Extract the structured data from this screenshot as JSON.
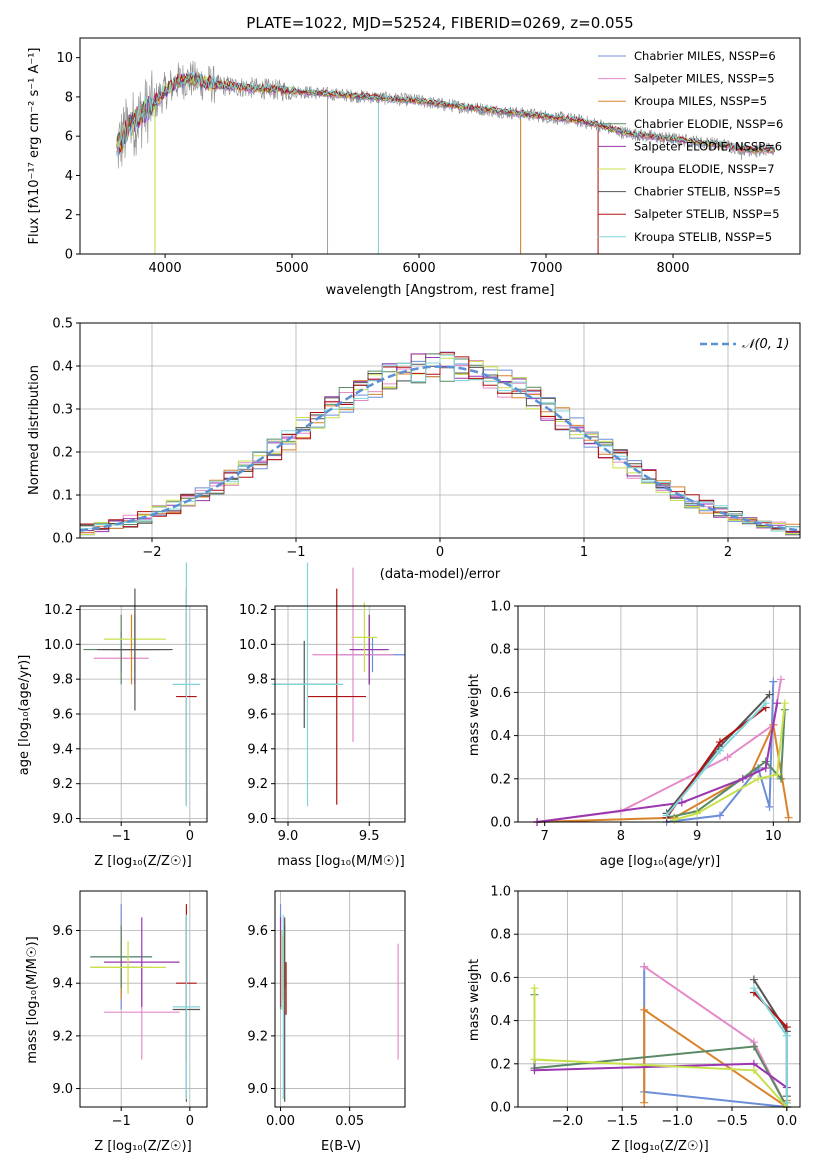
{
  "colors": {
    "chabrier_miles": "#6c8ed8",
    "salpeter_miles": "#e58ac8",
    "kroupa_miles": "#d9822b",
    "chabrier_elodie": "#5a8a64",
    "salpeter_elodie": "#9a36b0",
    "kroupa_elodie": "#c8e04a",
    "chabrier_stelib": "#555555",
    "salpeter_stelib": "#b01010",
    "kroupa_stelib": "#7fd6dc",
    "observed": "#888888",
    "normal": "#5b8fd6"
  },
  "spectrum_panel": {
    "title": "PLATE=1022, MJD=52524, FIBERID=0269, z=0.055",
    "xlabel": "wavelength [Angstrom, rest frame]",
    "ylabel": "Flux [fλ10⁻¹⁷ erg cm⁻² s⁻¹ A⁻¹]",
    "legend": [
      "Chabrier MILES, NSSP=6",
      "Salpeter MILES, NSSP=5",
      "Kroupa MILES, NSSP=5",
      "Chabrier ELODIE, NSSP=6",
      "Salpeter ELODIE, NSSP=6",
      "Kroupa ELODIE, NSSP=7",
      "Chabrier STELIB, NSSP=5",
      "Salpeter STELIB, NSSP=5",
      "Kroupa STELIB, NSSP=5"
    ]
  },
  "residual_panel": {
    "xlabel": "(data-model)/error",
    "ylabel": "Normed distribution",
    "legend": "𝒩(0, 1)"
  },
  "age_z_panel": {
    "xlabel": "Z [log₁₀(Z/Z☉)]",
    "ylabel": "age  [log₁₀(age/yr)]"
  },
  "age_mass_panel": {
    "xlabel": "mass [log₁₀(M/M☉)]"
  },
  "weight_age_panel": {
    "xlabel": "age  [log₁₀(age/yr)]",
    "ylabel": "mass weight"
  },
  "mass_z_panel": {
    "xlabel": "Z [log₁₀(Z/Z☉)]",
    "ylabel": "mass [log₁₀(M/M☉)]"
  },
  "mass_ebv_panel": {
    "xlabel": "E(B-V)"
  },
  "weight_z_panel": {
    "xlabel": "Z [log₁₀(Z/Z☉)]",
    "ylabel": "mass weight"
  },
  "chart_data": [
    {
      "type": "line",
      "title": "PLATE=1022, MJD=52524, FIBERID=0269, z=0.055",
      "xlabel": "wavelength [Angstrom, rest frame]",
      "ylabel": "Flux [fλ10⁻¹⁷ erg cm⁻² s⁻¹ A⁻¹]",
      "xlim": [
        3330,
        9000
      ],
      "ylim": [
        0,
        11
      ],
      "xticks": [
        4000,
        5000,
        6000,
        7000,
        8000
      ],
      "yticks": [
        0,
        2,
        4,
        6,
        8,
        10
      ],
      "legend_position": "upper right",
      "grid": false,
      "continuum": {
        "x": [
          3620,
          3700,
          3800,
          3900,
          4000,
          4100,
          4200,
          4400,
          4600,
          4800,
          5000,
          5200,
          5400,
          5600,
          5800,
          6000,
          6200,
          6400,
          6600,
          6800,
          7000,
          7200,
          7400,
          7600,
          7800,
          8000,
          8200,
          8400,
          8600,
          8800
        ],
        "y": [
          5.4,
          6.3,
          7.0,
          7.6,
          8.3,
          8.8,
          8.9,
          8.6,
          8.5,
          8.4,
          8.3,
          8.2,
          8.1,
          8.0,
          7.9,
          7.8,
          7.6,
          7.45,
          7.3,
          7.15,
          7.0,
          6.85,
          6.6,
          6.2,
          6.0,
          5.85,
          5.7,
          5.55,
          5.3,
          5.3
        ]
      },
      "series": [
        {
          "name": "Chabrier MILES, NSSP=6",
          "color_key": "chabrier_miles"
        },
        {
          "name": "Salpeter MILES, NSSP=5",
          "color_key": "salpeter_miles"
        },
        {
          "name": "Kroupa MILES, NSSP=5",
          "color_key": "kroupa_miles"
        },
        {
          "name": "Chabrier ELODIE, NSSP=6",
          "color_key": "chabrier_elodie"
        },
        {
          "name": "Salpeter ELODIE, NSSP=6",
          "color_key": "salpeter_elodie"
        },
        {
          "name": "Kroupa ELODIE, NSSP=7",
          "color_key": "kroupa_elodie"
        },
        {
          "name": "Chabrier STELIB, NSSP=5",
          "color_key": "chabrier_stelib"
        },
        {
          "name": "Salpeter STELIB, NSSP=5",
          "color_key": "salpeter_stelib"
        },
        {
          "name": "Kroupa STELIB, NSSP=5",
          "color_key": "kroupa_stelib"
        }
      ]
    },
    {
      "type": "bar",
      "xlabel": "(data-model)/error",
      "ylabel": "Normed distribution",
      "xlim": [
        -2.5,
        2.5
      ],
      "ylim": [
        0,
        0.5
      ],
      "xticks": [
        -2,
        -1,
        0,
        1,
        2
      ],
      "yticks": [
        0.0,
        0.1,
        0.2,
        0.3,
        0.4,
        0.5
      ],
      "grid": true,
      "bin_width": 0.1,
      "bin_start": -2.5,
      "reference_curve": {
        "name": "𝒩(0, 1)",
        "mean": 0,
        "sigma": 1,
        "style": "dashed"
      },
      "histograms": 9
    },
    {
      "type": "scatter",
      "xlabel": "Z [log₁₀(Z/Z☉)]",
      "ylabel": "age  [log₁₀(age/yr)]",
      "xlim": [
        -1.6,
        0.25
      ],
      "ylim": [
        8.98,
        10.22
      ],
      "xticks": [
        -1,
        0
      ],
      "yticks": [
        9.0,
        9.2,
        9.4,
        9.6,
        9.8,
        10.0,
        10.2
      ],
      "grid": true,
      "points": [
        {
          "key": "chabrier_miles",
          "x": -1.0,
          "y": 9.97,
          "xerr": 0.15,
          "yerr": 0.1
        },
        {
          "key": "salpeter_miles",
          "x": -1.0,
          "y": 9.92,
          "xerr": 0.4,
          "yerr": 0.08
        },
        {
          "key": "kroupa_miles",
          "x": -0.85,
          "y": 9.97,
          "xerr": 0.3,
          "yerr": 0.2
        },
        {
          "key": "chabrier_elodie",
          "x": -1.0,
          "y": 9.97,
          "xerr": 0.55,
          "yerr": 0.2
        },
        {
          "key": "salpeter_elodie",
          "x": -0.8,
          "y": 9.97,
          "xerr": 0.5,
          "yerr": 0.2
        },
        {
          "key": "kroupa_elodie",
          "x": -0.8,
          "y": 10.03,
          "xerr": 0.45,
          "yerr": 0.2
        },
        {
          "key": "chabrier_stelib",
          "x": -0.8,
          "y": 9.97,
          "xerr": 0.55,
          "yerr": 0.35
        },
        {
          "key": "salpeter_stelib",
          "x": -0.05,
          "y": 9.7,
          "xerr": 0.15,
          "yerr": 0.62
        },
        {
          "key": "kroupa_stelib",
          "x": -0.05,
          "y": 9.77,
          "xerr": 0.2,
          "yerr": 0.7
        }
      ]
    },
    {
      "type": "scatter",
      "xlabel": "mass [log₁₀(M/M☉)]",
      "ylabel": "",
      "xlim": [
        8.92,
        9.72
      ],
      "ylim": [
        8.98,
        10.22
      ],
      "xticks": [
        9.0,
        9.5
      ],
      "yticks": [
        9.0,
        9.2,
        9.4,
        9.6,
        9.8,
        10.0,
        10.2
      ],
      "grid": true,
      "points": [
        {
          "key": "chabrier_miles",
          "x": 9.52,
          "y": 9.94,
          "xerr": 0.2,
          "yerr": 0.1
        },
        {
          "key": "salpeter_miles",
          "x": 9.4,
          "y": 9.94,
          "xerr": 0.25,
          "yerr": 0.5
        },
        {
          "key": "kroupa_miles",
          "x": 9.5,
          "y": 9.97,
          "xerr": 0.1,
          "yerr": 0.2
        },
        {
          "key": "chabrier_elodie",
          "x": 9.5,
          "y": 9.97,
          "xerr": 0.12,
          "yerr": 0.2
        },
        {
          "key": "salpeter_elodie",
          "x": 9.5,
          "y": 9.97,
          "xerr": 0.12,
          "yerr": 0.2
        },
        {
          "key": "kroupa_elodie",
          "x": 9.47,
          "y": 10.04,
          "xerr": 0.08,
          "yerr": 0.2
        },
        {
          "key": "chabrier_stelib",
          "x": 9.1,
          "y": 9.77,
          "xerr": 0.2,
          "yerr": 0.25
        },
        {
          "key": "salpeter_stelib",
          "x": 9.3,
          "y": 9.7,
          "xerr": 0.18,
          "yerr": 0.62
        },
        {
          "key": "kroupa_stelib",
          "x": 9.12,
          "y": 9.77,
          "xerr": 0.22,
          "yerr": 0.7
        }
      ]
    },
    {
      "type": "line",
      "xlabel": "age  [log₁₀(age/yr)]",
      "ylabel": "mass weight",
      "xlim": [
        6.65,
        10.35
      ],
      "ylim": [
        0,
        1.0
      ],
      "xticks": [
        7,
        8,
        9,
        10
      ],
      "yticks": [
        0.0,
        0.2,
        0.4,
        0.6,
        0.8,
        1.0
      ],
      "grid": true,
      "series": [
        {
          "key": "chabrier_miles",
          "x": [
            8.6,
            9.3,
            9.8,
            9.95,
            10.0
          ],
          "y": [
            0.0,
            0.03,
            0.25,
            0.07,
            0.65
          ]
        },
        {
          "key": "salpeter_miles",
          "x": [
            6.9,
            8.0,
            9.4,
            10.0,
            10.1
          ],
          "y": [
            0.0,
            0.05,
            0.3,
            0.45,
            0.66
          ]
        },
        {
          "key": "kroupa_miles",
          "x": [
            6.9,
            8.7,
            9.7,
            10.0,
            10.2
          ],
          "y": [
            0.0,
            0.02,
            0.22,
            0.45,
            0.02
          ]
        },
        {
          "key": "chabrier_elodie",
          "x": [
            8.6,
            9.0,
            9.9,
            10.1,
            10.15
          ],
          "y": [
            0.02,
            0.05,
            0.28,
            0.2,
            0.52
          ]
        },
        {
          "key": "salpeter_elodie",
          "x": [
            6.9,
            8.8,
            9.6,
            9.9,
            10.05
          ],
          "y": [
            0.0,
            0.09,
            0.2,
            0.25,
            0.55
          ]
        },
        {
          "key": "kroupa_elodie",
          "x": [
            8.7,
            9.0,
            9.8,
            10.05,
            10.15
          ],
          "y": [
            0.01,
            0.04,
            0.2,
            0.22,
            0.55
          ]
        },
        {
          "key": "chabrier_stelib",
          "x": [
            8.6,
            9.3,
            9.95
          ],
          "y": [
            0.04,
            0.35,
            0.59
          ]
        },
        {
          "key": "salpeter_stelib",
          "x": [
            8.6,
            9.3,
            9.9
          ],
          "y": [
            0.02,
            0.37,
            0.53
          ]
        },
        {
          "key": "kroupa_stelib",
          "x": [
            8.6,
            9.3,
            9.9
          ],
          "y": [
            0.03,
            0.33,
            0.55
          ]
        }
      ]
    },
    {
      "type": "scatter",
      "xlabel": "Z [log₁₀(Z/Z☉)]",
      "ylabel": "mass [log₁₀(M/M☉)]",
      "xlim": [
        -1.6,
        0.25
      ],
      "ylim": [
        8.93,
        9.75
      ],
      "xticks": [
        -1,
        0
      ],
      "yticks": [
        9.0,
        9.2,
        9.4,
        9.6
      ],
      "grid": true,
      "points": [
        {
          "key": "chabrier_miles",
          "x": -1.0,
          "y": 9.5,
          "xerr": 0.45,
          "yerr": 0.2
        },
        {
          "key": "salpeter_miles",
          "x": -0.7,
          "y": 9.29,
          "xerr": 0.55,
          "yerr": 0.18
        },
        {
          "key": "kroupa_miles",
          "x": -1.0,
          "y": 9.46,
          "xerr": 0.45,
          "yerr": 0.12
        },
        {
          "key": "chabrier_elodie",
          "x": -1.0,
          "y": 9.5,
          "xerr": 0.45,
          "yerr": 0.12
        },
        {
          "key": "salpeter_elodie",
          "x": -0.7,
          "y": 9.48,
          "xerr": 0.55,
          "yerr": 0.17
        },
        {
          "key": "kroupa_elodie",
          "x": -0.9,
          "y": 9.46,
          "xerr": 0.55,
          "yerr": 0.1
        },
        {
          "key": "chabrier_stelib",
          "x": -0.05,
          "y": 9.3,
          "xerr": 0.2,
          "yerr": 0.35
        },
        {
          "key": "salpeter_stelib",
          "x": -0.05,
          "y": 9.4,
          "xerr": 0.15,
          "yerr": 0.3
        },
        {
          "key": "kroupa_stelib",
          "x": -0.05,
          "y": 9.31,
          "xerr": 0.2,
          "yerr": 0.35
        }
      ]
    },
    {
      "type": "scatter",
      "xlabel": "E(B-V)",
      "ylabel": "",
      "xlim": [
        -0.004,
        0.09
      ],
      "ylim": [
        8.93,
        9.75
      ],
      "xticks": [
        0.0,
        0.05
      ],
      "yticks": [
        9.0,
        9.2,
        9.4,
        9.6
      ],
      "grid": true,
      "points": [
        {
          "key": "chabrier_miles",
          "x": 0.0,
          "y": 9.5,
          "xerr": 0.0,
          "yerr": 0.2
        },
        {
          "key": "salpeter_miles",
          "x": 0.085,
          "y": 9.33,
          "xerr": 0.0,
          "yerr": 0.22
        },
        {
          "key": "kroupa_miles",
          "x": 0.002,
          "y": 9.46,
          "xerr": 0.0,
          "yerr": 0.12
        },
        {
          "key": "chabrier_elodie",
          "x": 0.003,
          "y": 9.5,
          "xerr": 0.0,
          "yerr": 0.12
        },
        {
          "key": "salpeter_elodie",
          "x": 0.0,
          "y": 9.48,
          "xerr": 0.0,
          "yerr": 0.17
        },
        {
          "key": "kroupa_elodie",
          "x": 0.001,
          "y": 9.45,
          "xerr": 0.0,
          "yerr": 0.15
        },
        {
          "key": "chabrier_stelib",
          "x": 0.003,
          "y": 9.3,
          "xerr": 0.0,
          "yerr": 0.35
        },
        {
          "key": "salpeter_stelib",
          "x": 0.004,
          "y": 9.38,
          "xerr": 0.0,
          "yerr": 0.1
        },
        {
          "key": "kroupa_stelib",
          "x": 0.002,
          "y": 9.31,
          "xerr": 0.0,
          "yerr": 0.35
        }
      ]
    },
    {
      "type": "line",
      "xlabel": "Z [log₁₀(Z/Z☉)]",
      "ylabel": "mass weight",
      "xlim": [
        -2.45,
        0.12
      ],
      "ylim": [
        0,
        1.0
      ],
      "xticks": [
        -2.0,
        -1.5,
        -1.0,
        -0.5,
        0.0
      ],
      "yticks": [
        0.0,
        0.2,
        0.4,
        0.6,
        0.8,
        1.0
      ],
      "grid": true,
      "series": [
        {
          "key": "chabrier_miles",
          "x": [
            -1.3,
            -1.3,
            0.0,
            0.0
          ],
          "y": [
            0.65,
            0.07,
            0.0,
            0.02
          ]
        },
        {
          "key": "salpeter_miles",
          "x": [
            -1.3,
            -0.3,
            0.0
          ],
          "y": [
            0.65,
            0.3,
            0.0
          ]
        },
        {
          "key": "kroupa_miles",
          "x": [
            -1.3,
            -1.3,
            0.0,
            0.0
          ],
          "y": [
            0.02,
            0.45,
            0.0,
            0.03
          ]
        },
        {
          "key": "chabrier_elodie",
          "x": [
            -2.3,
            -2.3,
            -0.3,
            0.0,
            0.0
          ],
          "y": [
            0.52,
            0.18,
            0.28,
            0.0,
            0.02
          ]
        },
        {
          "key": "salpeter_elodie",
          "x": [
            -2.3,
            -0.3,
            0.0
          ],
          "y": [
            0.17,
            0.2,
            0.09
          ]
        },
        {
          "key": "kroupa_elodie",
          "x": [
            -2.3,
            -2.3,
            -0.3,
            0.0,
            0.0
          ],
          "y": [
            0.55,
            0.22,
            0.17,
            0.0,
            0.02
          ]
        },
        {
          "key": "chabrier_stelib",
          "x": [
            -0.3,
            0.0,
            0.0
          ],
          "y": [
            0.59,
            0.35,
            0.05
          ]
        },
        {
          "key": "salpeter_stelib",
          "x": [
            -0.3,
            0.0
          ],
          "y": [
            0.53,
            0.37
          ]
        },
        {
          "key": "kroupa_stelib",
          "x": [
            -0.3,
            0.0,
            0.0
          ],
          "y": [
            0.55,
            0.33,
            0.02
          ]
        }
      ]
    }
  ]
}
